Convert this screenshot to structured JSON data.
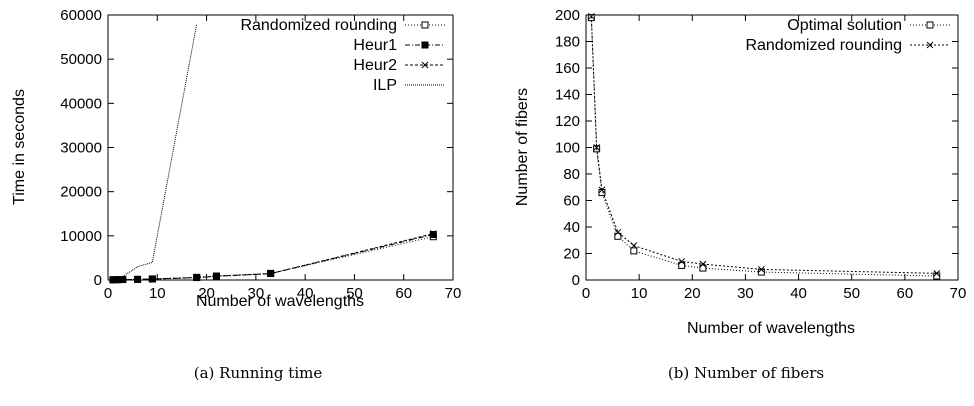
{
  "chart_data": [
    {
      "type": "line",
      "caption": "(a) Running time",
      "xlabel": "Number of wavelengths",
      "ylabel": "Time in seconds",
      "xlim": [
        0,
        70
      ],
      "ylim": [
        0,
        60000
      ],
      "xticks": [
        "0",
        "10",
        "20",
        "30",
        "40",
        "50",
        "60",
        "70"
      ],
      "yticks": [
        "0",
        "10000",
        "20000",
        "30000",
        "40000",
        "50000",
        "60000"
      ],
      "grid": false,
      "legend_position": "top-right",
      "series": [
        {
          "name": "Randomized rounding",
          "marker": "open-square",
          "dash": "1,2",
          "x": [
            1,
            2,
            3,
            6,
            9,
            18,
            22,
            33,
            66
          ],
          "y": [
            50,
            80,
            120,
            150,
            250,
            600,
            900,
            1500,
            9800
          ]
        },
        {
          "name": "Heur1",
          "marker": "filled-square",
          "dash": "5,2,1,2",
          "x": [
            1,
            2,
            3,
            6,
            9,
            18,
            22,
            33,
            66
          ],
          "y": [
            40,
            70,
            100,
            130,
            220,
            550,
            850,
            1450,
            10300
          ]
        },
        {
          "name": "Heur2",
          "marker": "x",
          "dash": "3,2",
          "x": [
            1,
            2,
            3,
            6,
            9,
            18,
            22,
            33,
            66
          ],
          "y": [
            40,
            70,
            100,
            130,
            220,
            550,
            850,
            1450,
            10500
          ]
        },
        {
          "name": "ILP",
          "marker": "none",
          "dash": "1,1",
          "x": [
            1,
            2,
            3,
            6,
            9,
            18
          ],
          "y": [
            100,
            300,
            800,
            3000,
            4000,
            58000
          ]
        }
      ]
    },
    {
      "type": "line",
      "caption": "(b) Number of fibers",
      "xlabel": "Number of wavelengths",
      "ylabel": "Number of fibers",
      "xlim": [
        0,
        70
      ],
      "ylim": [
        0,
        200
      ],
      "xticks": [
        "0",
        "10",
        "20",
        "30",
        "40",
        "50",
        "60",
        "70"
      ],
      "yticks": [
        "0",
        "20",
        "40",
        "60",
        "80",
        "100",
        "120",
        "140",
        "160",
        "180",
        "200"
      ],
      "grid": false,
      "legend_position": "top-right",
      "series": [
        {
          "name": "Optimal solution",
          "marker": "open-square",
          "dash": "1,2",
          "x": [
            1,
            2,
            3,
            6,
            9,
            18,
            22,
            33,
            66
          ],
          "y": [
            198,
            99,
            66,
            33,
            22,
            11,
            9,
            6,
            3
          ]
        },
        {
          "name": "Randomized rounding",
          "marker": "x",
          "dash": "2,2",
          "x": [
            1,
            2,
            3,
            6,
            9,
            18,
            22,
            33,
            66
          ],
          "y": [
            199,
            100,
            68,
            36,
            26,
            14,
            12,
            8,
            5
          ]
        }
      ]
    }
  ]
}
